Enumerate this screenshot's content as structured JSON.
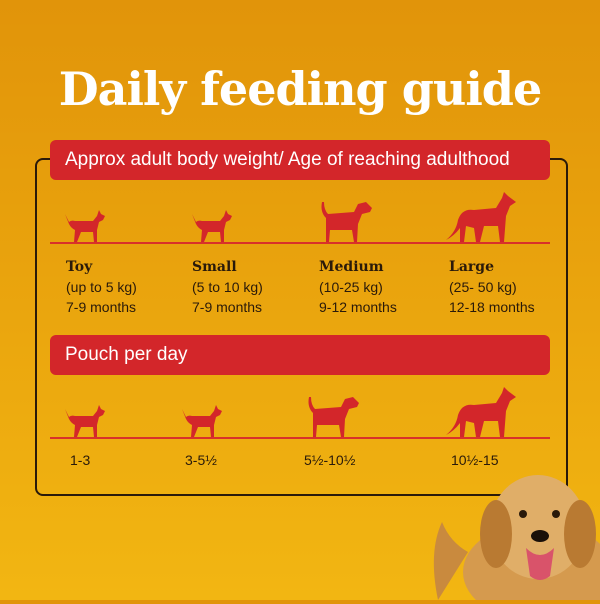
{
  "title": "Daily feeding guide",
  "banner_weight": "Approx adult body weight/ Age of reaching adulthood",
  "banner_pouch": "Pouch per day",
  "sizes": [
    {
      "name": "Toy",
      "weight": "(up to 5 kg)",
      "age": "7-9 months",
      "pouch": "1-3"
    },
    {
      "name": "Small",
      "weight": "(5 to 10 kg)",
      "age": "7-9 months",
      "pouch": "3-5½"
    },
    {
      "name": "Medium",
      "weight": "(10-25 kg)",
      "age": "9-12 months",
      "pouch": "5½-10½"
    },
    {
      "name": "Large",
      "weight": "(25- 50 kg)",
      "age": "12-18 months",
      "pouch": "10½-15"
    }
  ],
  "colors": {
    "accent_red": "#D3262A",
    "background": "#E9A30D",
    "title_text": "#FFFFFF"
  },
  "icons": [
    "toy-dog-icon",
    "small-dog-icon",
    "medium-dog-icon",
    "large-dog-icon",
    "golden-retriever-photo"
  ]
}
